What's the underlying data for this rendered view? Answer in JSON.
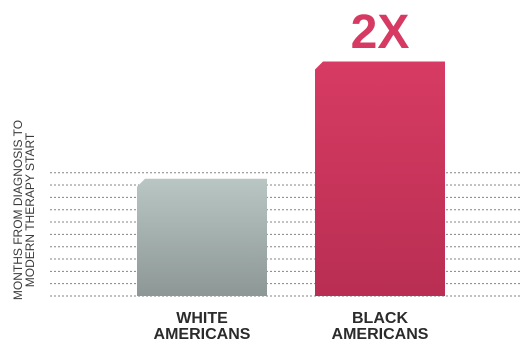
{
  "chart_data": {
    "type": "bar",
    "categories": [
      [
        "WHITE",
        "AMERICANS"
      ],
      [
        "BLACK",
        "AMERICANS"
      ]
    ],
    "values": [
      1,
      2
    ],
    "ylabel": [
      "MONTHS FROM DIAGNOSIS TO",
      "MODERN THERAPY START"
    ],
    "ylim": [
      0,
      2.2
    ],
    "grid": true,
    "annotation": {
      "text": "2X",
      "category_index": 1
    },
    "colors": {
      "bar_gradients": [
        [
          "#b9c6c4",
          "#8d9896"
        ],
        [
          "#d73b63",
          "#b92e53"
        ]
      ],
      "annotation": "#d63a62",
      "grid": "#666666"
    }
  }
}
